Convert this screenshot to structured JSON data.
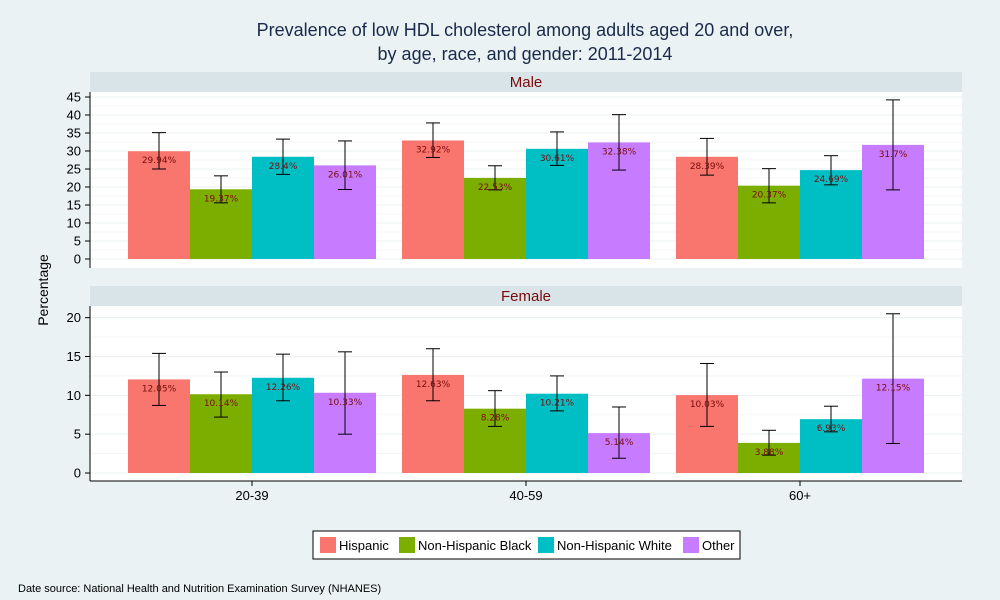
{
  "title_line1": "Prevalence of low HDL cholesterol among adults aged 20 and over,",
  "title_line2": "by age, race, and gender: 2011-2014",
  "source_note": "Date source: National Health and Nutrition Examination Survey (NHANES)",
  "colors": {
    "background": "#eaf2f3",
    "panel": "#ffffff",
    "strip": "#d9e4e8",
    "strip_text": "#7a0a0a",
    "Hispanic": "#f8766d",
    "Non-Hispanic Black": "#7cae00",
    "Non-Hispanic White": "#00bfc4",
    "Other": "#c77cff"
  },
  "chart_data": {
    "type": "bar",
    "ylabel": "Percentage",
    "xlabel": "",
    "categories": [
      "20-39",
      "40-59",
      "60+"
    ],
    "legend": [
      "Hispanic",
      "Non-Hispanic Black",
      "Non-Hispanic White",
      "Other"
    ],
    "legend_position": "bottom",
    "error_bars": true,
    "panels": [
      {
        "name": "Male",
        "ylim": [
          0,
          45
        ],
        "yticks": [
          0,
          5,
          10,
          15,
          20,
          25,
          30,
          35,
          40,
          45
        ],
        "series": [
          {
            "name": "Hispanic",
            "values": [
              29.94,
              32.92,
              28.39
            ],
            "labels": [
              "29.94%",
              "32.92%",
              "28.39%"
            ],
            "lower": [
              25.0,
              28.2,
              23.3
            ],
            "upper": [
              35.1,
              37.8,
              33.5
            ]
          },
          {
            "name": "Non-Hispanic Black",
            "values": [
              19.37,
              22.53,
              20.37
            ],
            "labels": [
              "19.37%",
              "22.53%",
              "20.37%"
            ],
            "lower": [
              15.6,
              19.2,
              15.6
            ],
            "upper": [
              23.1,
              25.9,
              25.1
            ]
          },
          {
            "name": "Non-Hispanic White",
            "values": [
              28.4,
              30.61,
              24.69
            ],
            "labels": [
              "28.4%",
              "30.61%",
              "24.69%"
            ],
            "lower": [
              23.5,
              26.0,
              20.6
            ],
            "upper": [
              33.3,
              35.3,
              28.7
            ]
          },
          {
            "name": "Other",
            "values": [
              26.01,
              32.38,
              31.7
            ],
            "labels": [
              "26.01%",
              "32.38%",
              "31.7%"
            ],
            "lower": [
              19.3,
              24.7,
              19.2
            ],
            "upper": [
              32.8,
              40.1,
              44.2
            ]
          }
        ]
      },
      {
        "name": "Female",
        "ylim": [
          0,
          21.5
        ],
        "yticks": [
          0,
          5,
          10,
          15,
          20
        ],
        "series": [
          {
            "name": "Hispanic",
            "values": [
              12.05,
              12.63,
              10.03
            ],
            "labels": [
              "12.05%",
              "12.63%",
              "10.03%"
            ],
            "lower": [
              8.7,
              9.3,
              6.0
            ],
            "upper": [
              15.4,
              16.0,
              14.1
            ]
          },
          {
            "name": "Non-Hispanic Black",
            "values": [
              10.14,
              8.28,
              3.88
            ],
            "labels": [
              "10.14%",
              "8.28%",
              "3.88%"
            ],
            "lower": [
              7.2,
              6.0,
              2.3
            ],
            "upper": [
              13.0,
              10.6,
              5.5
            ]
          },
          {
            "name": "Non-Hispanic White",
            "values": [
              12.26,
              10.21,
              6.93
            ],
            "labels": [
              "12.26%",
              "10.21%",
              "6.93%"
            ],
            "lower": [
              9.3,
              8.0,
              5.3
            ],
            "upper": [
              15.3,
              12.5,
              8.6
            ]
          },
          {
            "name": "Other",
            "values": [
              10.33,
              5.14,
              12.15
            ],
            "labels": [
              "10.33%",
              "5.14%",
              "12.15%"
            ],
            "lower": [
              5.0,
              1.9,
              3.8
            ],
            "upper": [
              15.6,
              8.5,
              20.5
            ]
          }
        ]
      }
    ]
  }
}
